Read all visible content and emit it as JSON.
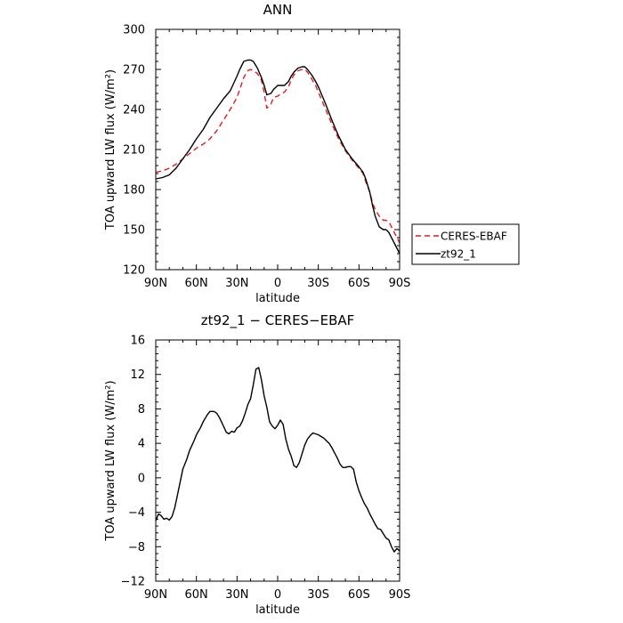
{
  "chart_data": [
    {
      "type": "line",
      "title": "ANN",
      "xlabel": "latitude",
      "ylabel": "TOA upward LW flux (W/m²)",
      "xlim": [
        90,
        -90
      ],
      "ylim": [
        120,
        300
      ],
      "x_ticks": [
        90,
        60,
        30,
        0,
        -30,
        -60,
        -90
      ],
      "x_tick_labels": [
        "90N",
        "60N",
        "30N",
        "0",
        "30S",
        "60S",
        "90S"
      ],
      "y_ticks": [
        120,
        150,
        180,
        210,
        240,
        270,
        300
      ],
      "y_tick_labels": [
        "120",
        "150",
        "180",
        "210",
        "240",
        "270",
        "300"
      ],
      "legend_position": "right",
      "series": [
        {
          "name": "CERES-EBAF",
          "style": "dashed",
          "color": "#e31a1c",
          "x": [
            90,
            85,
            80,
            75,
            70,
            65,
            60,
            55,
            50,
            45,
            40,
            35,
            30,
            28,
            25,
            22,
            20,
            18,
            15,
            12,
            10,
            8,
            5,
            3,
            0,
            -3,
            -5,
            -8,
            -10,
            -12,
            -15,
            -18,
            -20,
            -22,
            -25,
            -28,
            -30,
            -35,
            -40,
            -45,
            -50,
            -55,
            -60,
            -63,
            -65,
            -68,
            -70,
            -72,
            -75,
            -78,
            -80,
            -82,
            -85,
            -88,
            -90
          ],
          "y": [
            193,
            194,
            196,
            199,
            203,
            207,
            211,
            214,
            218,
            224,
            232,
            240,
            249,
            255,
            264,
            269,
            270,
            269,
            267,
            262,
            253,
            241,
            244,
            249,
            250,
            252,
            253,
            257,
            262,
            266,
            269,
            270,
            270,
            268,
            263,
            258,
            253,
            241,
            229,
            218,
            209,
            202,
            196,
            192,
            186,
            178,
            170,
            165,
            160,
            157,
            157,
            156,
            150,
            144,
            140
          ]
        },
        {
          "name": "zt92_1",
          "style": "solid",
          "color": "#000000",
          "x": [
            90,
            85,
            80,
            75,
            70,
            65,
            60,
            55,
            50,
            45,
            40,
            35,
            30,
            28,
            25,
            22,
            20,
            18,
            15,
            12,
            10,
            8,
            5,
            3,
            0,
            -3,
            -5,
            -8,
            -10,
            -12,
            -15,
            -18,
            -20,
            -22,
            -25,
            -28,
            -30,
            -35,
            -40,
            -45,
            -50,
            -55,
            -60,
            -63,
            -65,
            -68,
            -70,
            -72,
            -75,
            -78,
            -80,
            -82,
            -85,
            -88,
            -90
          ],
          "y": [
            188,
            189,
            191,
            196,
            203,
            210,
            218,
            225,
            234,
            241,
            248,
            254,
            265,
            270,
            276,
            277,
            277,
            276,
            271,
            264,
            258,
            251,
            252,
            255,
            258,
            258,
            258,
            261,
            265,
            268,
            271,
            272,
            272,
            270,
            266,
            261,
            257,
            245,
            232,
            220,
            210,
            203,
            197,
            193,
            188,
            178,
            168,
            160,
            152,
            150,
            150,
            148,
            142,
            136,
            132
          ]
        }
      ]
    },
    {
      "type": "line",
      "title": "zt92_1 − CERES−EBAF",
      "xlabel": "latitude",
      "ylabel": "TOA upward LW flux (W/m²)",
      "xlim": [
        90,
        -90
      ],
      "ylim": [
        -12,
        16
      ],
      "x_ticks": [
        90,
        60,
        30,
        0,
        -30,
        -60,
        -90
      ],
      "x_tick_labels": [
        "90N",
        "60N",
        "30N",
        "0",
        "30S",
        "60S",
        "90S"
      ],
      "y_ticks": [
        -12,
        -8,
        -4,
        0,
        4,
        8,
        12,
        16
      ],
      "y_tick_labels": [
        "−12",
        "−8",
        "−4",
        "0",
        "4",
        "8",
        "12",
        "16"
      ],
      "series": [
        {
          "style": "solid",
          "color": "#000000",
          "x": [
            90,
            88,
            86,
            84,
            82,
            80,
            78,
            76,
            74,
            72,
            70,
            67,
            65,
            62,
            60,
            57,
            55,
            52,
            50,
            47,
            45,
            43,
            40,
            38,
            36,
            34,
            32,
            30,
            28,
            26,
            24,
            22,
            20,
            18,
            16,
            14,
            12,
            10,
            8,
            6,
            4,
            2,
            0,
            -2,
            -4,
            -6,
            -8,
            -10,
            -12,
            -14,
            -16,
            -18,
            -20,
            -22,
            -24,
            -26,
            -28,
            -30,
            -32,
            -34,
            -36,
            -38,
            -40,
            -42,
            -44,
            -46,
            -48,
            -50,
            -52,
            -54,
            -56,
            -58,
            -60,
            -62,
            -64,
            -66,
            -68,
            -70,
            -72,
            -74,
            -76,
            -78,
            -80,
            -82,
            -84,
            -86,
            -88,
            -90
          ],
          "y": [
            -5.0,
            -4.2,
            -4.4,
            -4.8,
            -4.7,
            -4.9,
            -4.5,
            -3.5,
            -2.0,
            -0.5,
            1.0,
            2.2,
            3.2,
            4.2,
            5.0,
            5.8,
            6.5,
            7.3,
            7.7,
            7.7,
            7.5,
            7.0,
            6.0,
            5.3,
            5.1,
            5.4,
            5.3,
            5.8,
            6.0,
            6.6,
            7.5,
            8.5,
            9.2,
            10.8,
            12.6,
            12.8,
            11.4,
            9.5,
            8.2,
            6.5,
            6.0,
            5.7,
            6.1,
            6.7,
            6.2,
            4.5,
            3.3,
            2.5,
            1.4,
            1.2,
            1.8,
            2.8,
            3.8,
            4.5,
            4.9,
            5.2,
            5.1,
            5.0,
            4.8,
            4.6,
            4.3,
            4.0,
            3.5,
            2.9,
            2.3,
            1.6,
            1.2,
            1.2,
            1.3,
            1.3,
            1.0,
            -0.5,
            -1.5,
            -2.3,
            -3.0,
            -3.5,
            -4.2,
            -4.8,
            -5.4,
            -5.9,
            -6.0,
            -6.5,
            -7.0,
            -7.2,
            -8.0,
            -8.6,
            -8.2,
            -8.5
          ]
        }
      ]
    }
  ]
}
